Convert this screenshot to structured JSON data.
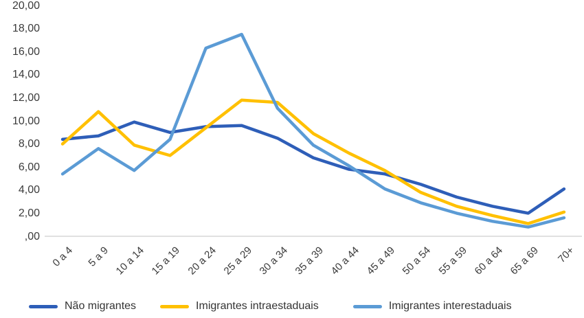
{
  "chart_data": {
    "type": "line",
    "title": "",
    "xlabel": "",
    "ylabel": "",
    "categories": [
      "0 a 4",
      "5 a 9",
      "10 a 14",
      "15 a 19",
      "20 a 24",
      "25 a 29",
      "30 a 34",
      "35 a 39",
      "40 a 44",
      "45 a 49",
      "50 a 54",
      "55 a 59",
      "60 a 64",
      "65 a 69",
      "70+"
    ],
    "series": [
      {
        "name": "Não migrantes",
        "color": "#2E5EB8",
        "values": [
          8.4,
          8.7,
          9.9,
          9.0,
          9.5,
          9.6,
          8.5,
          6.8,
          5.8,
          5.4,
          4.5,
          3.4,
          2.6,
          2.0,
          4.1
        ]
      },
      {
        "name": "Imigrantes intraestaduais",
        "color": "#FFC000",
        "values": [
          8.0,
          10.8,
          7.9,
          7.0,
          9.4,
          11.8,
          11.6,
          8.9,
          7.2,
          5.7,
          3.8,
          2.6,
          1.8,
          1.1,
          2.1
        ]
      },
      {
        "name": "Imigrantes interestaduais",
        "color": "#5B9BD5",
        "values": [
          5.4,
          7.6,
          5.7,
          8.4,
          16.3,
          17.5,
          11.1,
          7.9,
          6.1,
          4.1,
          2.9,
          2.0,
          1.3,
          0.8,
          1.6
        ]
      }
    ],
    "ylim": [
      0,
      20
    ],
    "ytick_step": 2,
    "ytick_labels": [
      ",00",
      "2,00",
      "4,00",
      "6,00",
      "8,00",
      "10,00",
      "12,00",
      "14,00",
      "16,00",
      "18,00",
      "20,00"
    ],
    "grid": false,
    "legend_position": "bottom",
    "axis_color": "#D6D6D6",
    "text_color": "#3B3B3B",
    "line_width": 4.5
  }
}
